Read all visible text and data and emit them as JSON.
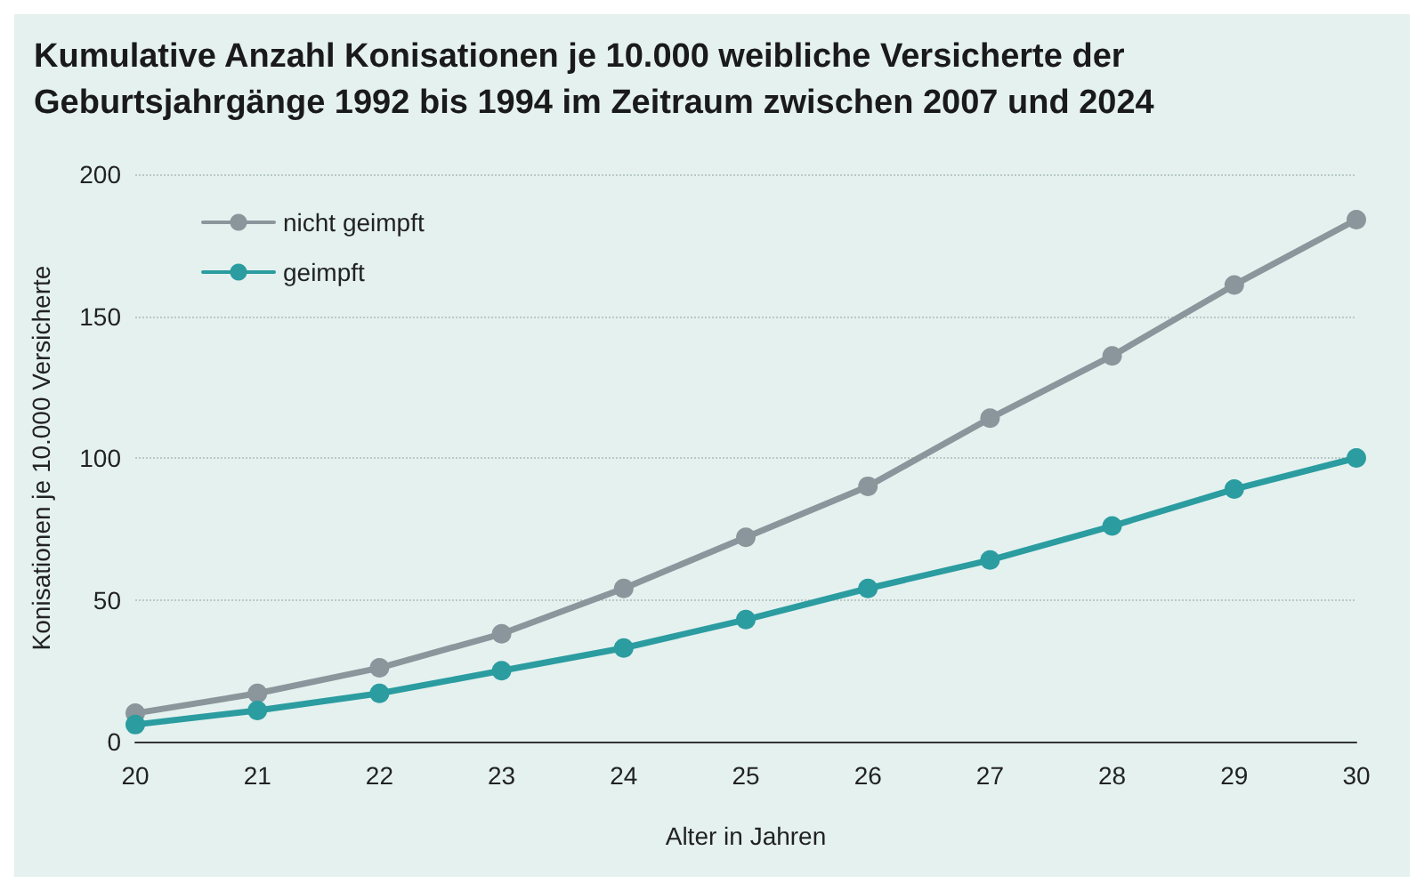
{
  "chart_data": {
    "type": "line",
    "title": "Kumulative Anzahl Konisationen je 10.000 weibliche Versicherte der Geburtsjahrgänge 1992 bis 1994 im Zeitraum zwischen 2007 und 2024",
    "xlabel": "Alter in Jahren",
    "ylabel": "Konisationen je 10.000 Versicherte",
    "x": [
      20,
      21,
      22,
      23,
      24,
      25,
      26,
      27,
      28,
      29,
      30
    ],
    "series": [
      {
        "name": "nicht geimpft",
        "color": "#8a969b",
        "values": [
          10,
          17,
          26,
          38,
          54,
          72,
          90,
          114,
          136,
          161,
          184
        ]
      },
      {
        "name": "geimpft",
        "color": "#2b9ca0",
        "values": [
          6,
          11,
          17,
          25,
          33,
          43,
          54,
          64,
          76,
          89,
          100
        ]
      }
    ],
    "xlim": [
      20,
      30
    ],
    "xticks": [
      20,
      21,
      22,
      23,
      24,
      25,
      26,
      27,
      28,
      29,
      30
    ],
    "ylim": [
      0,
      200
    ],
    "yticks": [
      0,
      50,
      100,
      150,
      200
    ],
    "grid": "y",
    "legend": "top left",
    "marker": "circle",
    "line_style": "solid"
  }
}
